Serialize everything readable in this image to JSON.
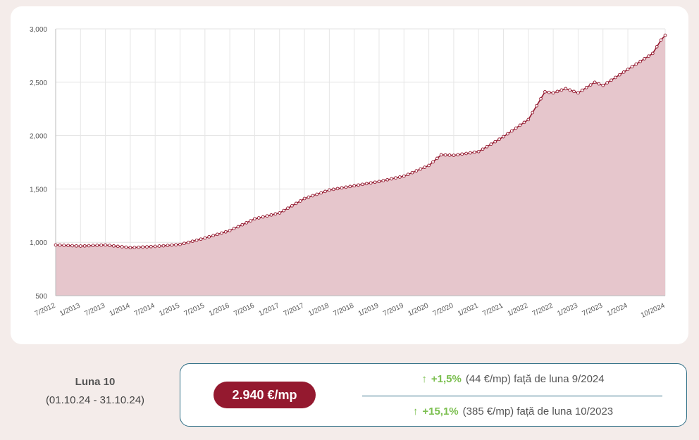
{
  "chart_data": {
    "type": "area",
    "title": "",
    "xlabel": "",
    "ylabel": "",
    "ylim": [
      500,
      3000
    ],
    "y_ticks": [
      "3,000",
      "2,500",
      "2,000",
      "1,500",
      "1,000",
      "500"
    ],
    "y_tick_values": [
      3000,
      2500,
      2000,
      1500,
      1000,
      500
    ],
    "x_tick_labels": [
      "7/2012",
      "1/2013",
      "7/2013",
      "1/2014",
      "7/2014",
      "1/2015",
      "7/2015",
      "1/2016",
      "7/2016",
      "1/2017",
      "7/2017",
      "1/2018",
      "7/2018",
      "1/2019",
      "7/2019",
      "1/2020",
      "7/2020",
      "1/2021",
      "7/2021",
      "1/2022",
      "7/2022",
      "1/2023",
      "7/2023",
      "1/2024",
      "10/2024"
    ],
    "grid": true,
    "line_color": "#94192f",
    "fill_color": "#e6c6cc",
    "start": "7/2012",
    "end": "10/2024",
    "anchors": [
      {
        "t": "7/2012",
        "v": 975
      },
      {
        "t": "1/2013",
        "v": 965
      },
      {
        "t": "7/2013",
        "v": 975
      },
      {
        "t": "1/2014",
        "v": 950
      },
      {
        "t": "7/2014",
        "v": 962
      },
      {
        "t": "1/2015",
        "v": 980
      },
      {
        "t": "7/2015",
        "v": 1040
      },
      {
        "t": "1/2016",
        "v": 1110
      },
      {
        "t": "7/2016",
        "v": 1220
      },
      {
        "t": "1/2017",
        "v": 1275
      },
      {
        "t": "7/2017",
        "v": 1410
      },
      {
        "t": "1/2018",
        "v": 1490
      },
      {
        "t": "7/2018",
        "v": 1530
      },
      {
        "t": "1/2019",
        "v": 1570
      },
      {
        "t": "7/2019",
        "v": 1620
      },
      {
        "t": "1/2020",
        "v": 1720
      },
      {
        "t": "4/2020",
        "v": 1820
      },
      {
        "t": "7/2020",
        "v": 1815
      },
      {
        "t": "1/2021",
        "v": 1850
      },
      {
        "t": "7/2021",
        "v": 1990
      },
      {
        "t": "1/2022",
        "v": 2150
      },
      {
        "t": "5/2022",
        "v": 2410
      },
      {
        "t": "7/2022",
        "v": 2400
      },
      {
        "t": "10/2022",
        "v": 2440
      },
      {
        "t": "1/2023",
        "v": 2400
      },
      {
        "t": "5/2023",
        "v": 2500
      },
      {
        "t": "7/2023",
        "v": 2470
      },
      {
        "t": "1/2024",
        "v": 2620
      },
      {
        "t": "7/2024",
        "v": 2770
      },
      {
        "t": "9/2024",
        "v": 2896
      },
      {
        "t": "10/2024",
        "v": 2940
      }
    ]
  },
  "summary": {
    "month_label": "Luna 10",
    "period": "(01.10.24 - 31.10.24)",
    "price": "2.940 €/mp",
    "change_month": {
      "arrow": "↑",
      "percent": "+1,5%",
      "text": "(44 €/mp) față de luna 9/2024"
    },
    "change_year": {
      "arrow": "↑",
      "percent": "+15,1%",
      "text": "(385 €/mp) față de luna 10/2023"
    }
  }
}
